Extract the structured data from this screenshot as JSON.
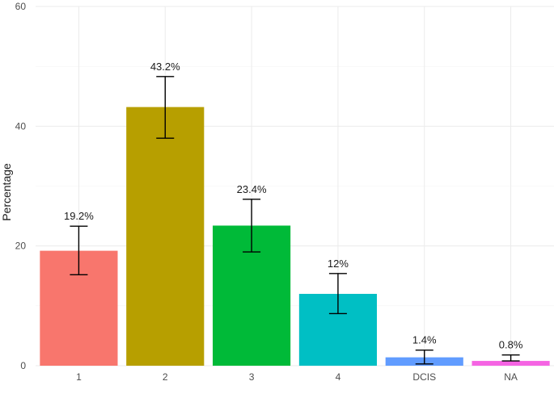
{
  "chart_data": {
    "type": "bar",
    "categories": [
      "1",
      "2",
      "3",
      "4",
      "DCIS",
      "NA"
    ],
    "values": [
      19.2,
      43.2,
      23.4,
      12.0,
      1.4,
      0.8
    ],
    "value_labels": [
      "19.2%",
      "43.2%",
      "23.4%",
      "12%",
      "1.4%",
      "0.8%"
    ],
    "error_low": [
      15.2,
      38.0,
      19.0,
      8.7,
      0.3,
      0.8
    ],
    "error_high": [
      23.3,
      48.3,
      27.8,
      15.4,
      2.6,
      1.8
    ],
    "colors": [
      "#F8766D",
      "#B79F00",
      "#00BA38",
      "#00BFC4",
      "#619CFF",
      "#F564E3"
    ],
    "title": "",
    "xlabel": "",
    "ylabel": "Percentage",
    "ylim": [
      0,
      60
    ],
    "yticks": [
      "0",
      "20",
      "40",
      "60"
    ],
    "grid": true,
    "legend": "none"
  }
}
